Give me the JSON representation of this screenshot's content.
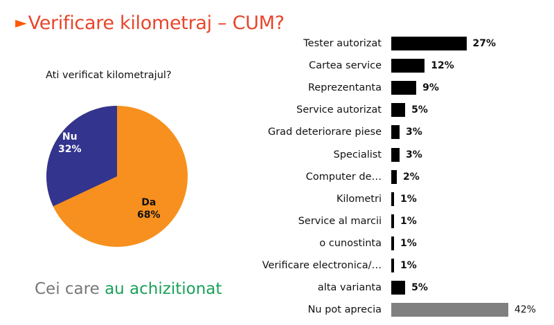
{
  "title": {
    "marker": "►",
    "text": "Verificare kilometraj – CUM?"
  },
  "pie": {
    "question": "Ati verificat kilometrajul?",
    "slices": [
      {
        "label": "Da",
        "value": "68%",
        "color": "#f7901e"
      },
      {
        "label": "Nu",
        "value": "32%",
        "color": "#33348e"
      }
    ]
  },
  "footer": {
    "part1": "Cei care ",
    "part2": "au achizitionat"
  },
  "bars": [
    {
      "label": "Tester autorizat",
      "value": "27%"
    },
    {
      "label": "Cartea service",
      "value": "12%"
    },
    {
      "label": "Reprezentanta",
      "value": "9%"
    },
    {
      "label": "Service autorizat",
      "value": "5%"
    },
    {
      "label": "Grad deteriorare piese",
      "value": "3%"
    },
    {
      "label": "Specialist",
      "value": "3%"
    },
    {
      "label": "Computer de…",
      "value": "2%"
    },
    {
      "label": "Kilometri",
      "value": "1%"
    },
    {
      "label": "Service al marcii",
      "value": "1%"
    },
    {
      "label": "o cunostinta",
      "value": "1%"
    },
    {
      "label": "Verificare electronica/…",
      "value": "1%"
    },
    {
      "label": "alta varianta",
      "value": "5%"
    },
    {
      "label": "Nu pot aprecia",
      "value": "42%"
    }
  ],
  "chart_data": [
    {
      "type": "pie",
      "title": "Ati verificat kilometrajul?",
      "categories": [
        "Da",
        "Nu"
      ],
      "values": [
        68,
        32
      ],
      "colors": [
        "#f7901e",
        "#33348e"
      ]
    },
    {
      "type": "bar",
      "orientation": "horizontal",
      "title": "Verificare kilometraj – CUM?",
      "categories": [
        "Tester autorizat",
        "Cartea service",
        "Reprezentanta",
        "Service autorizat",
        "Grad deteriorare piese",
        "Specialist",
        "Computer de…",
        "Kilometri",
        "Service al marcii",
        "o cunostinta",
        "Verificare electronica/…",
        "alta varianta",
        "Nu pot aprecia"
      ],
      "values": [
        27,
        12,
        9,
        5,
        3,
        3,
        2,
        1,
        1,
        1,
        1,
        5,
        42
      ],
      "colors": [
        "#000000",
        "#000000",
        "#000000",
        "#000000",
        "#000000",
        "#000000",
        "#000000",
        "#000000",
        "#000000",
        "#000000",
        "#000000",
        "#000000",
        "#808080"
      ],
      "xlabel": "",
      "ylabel": "",
      "grid": false,
      "data_labels": true
    }
  ]
}
